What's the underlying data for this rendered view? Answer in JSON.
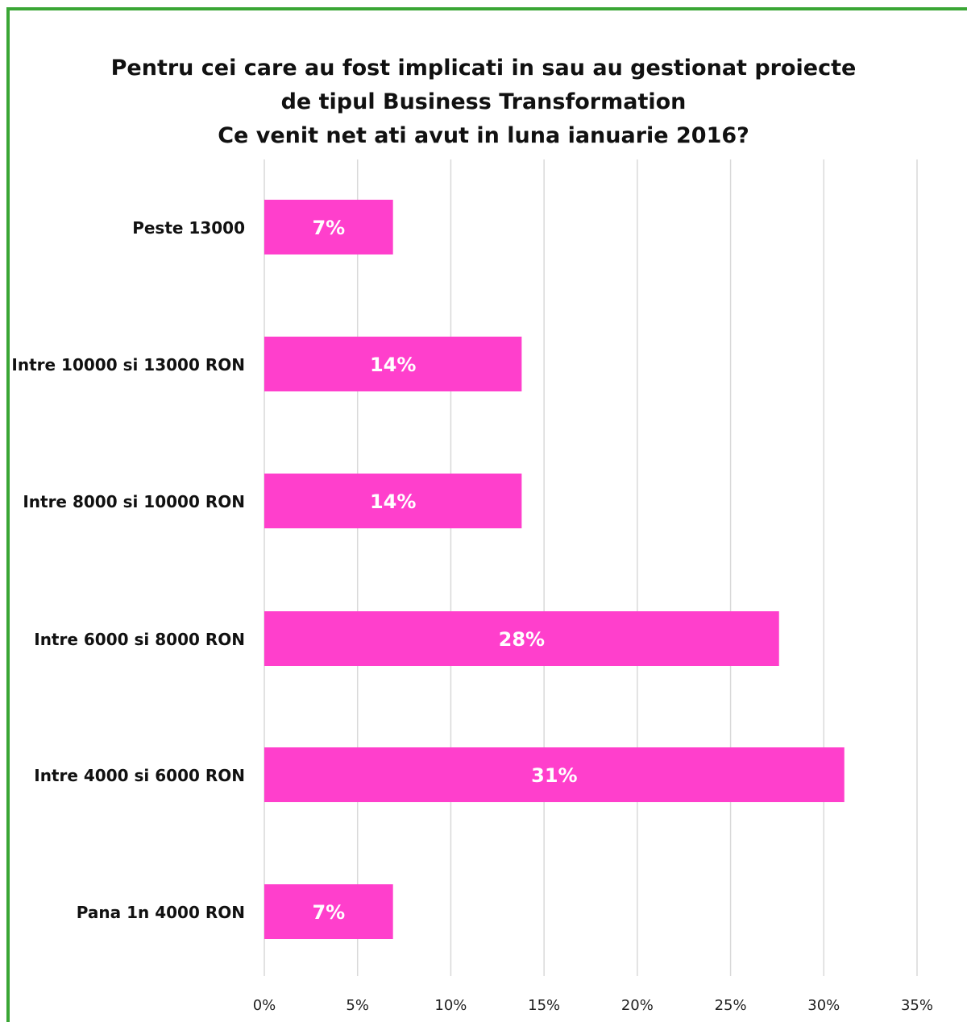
{
  "chart_data": {
    "type": "bar",
    "orientation": "horizontal",
    "title_lines": [
      "Pentru cei care au fost implicati in sau au gestionat proiecte",
      "de tipul Business Transformation",
      "Ce venit net ati avut in luna ianuarie 2016?"
    ],
    "categories": [
      "Peste 13000",
      "Intre 10000 si 13000 RON",
      "Intre 8000 si 10000 RON",
      "Intre 6000 si 8000 RON",
      "Intre 4000 si 6000 RON",
      "Pana 1n 4000 RON"
    ],
    "values": [
      6.9,
      13.8,
      13.8,
      27.6,
      31.1,
      6.9
    ],
    "data_labels": [
      "7%",
      "14%",
      "14%",
      "28%",
      "31%",
      "7%"
    ],
    "xlim": [
      0,
      35
    ],
    "x_ticks": [
      0,
      5,
      10,
      15,
      20,
      25,
      30,
      35
    ],
    "x_tick_labels": [
      "0%",
      "5%",
      "10%",
      "15%",
      "20%",
      "25%",
      "30%",
      "35%"
    ],
    "grid": true,
    "bar_color": "#ff3fcc",
    "grid_color": "#d9d9d9",
    "border_color": "#3aa635"
  }
}
